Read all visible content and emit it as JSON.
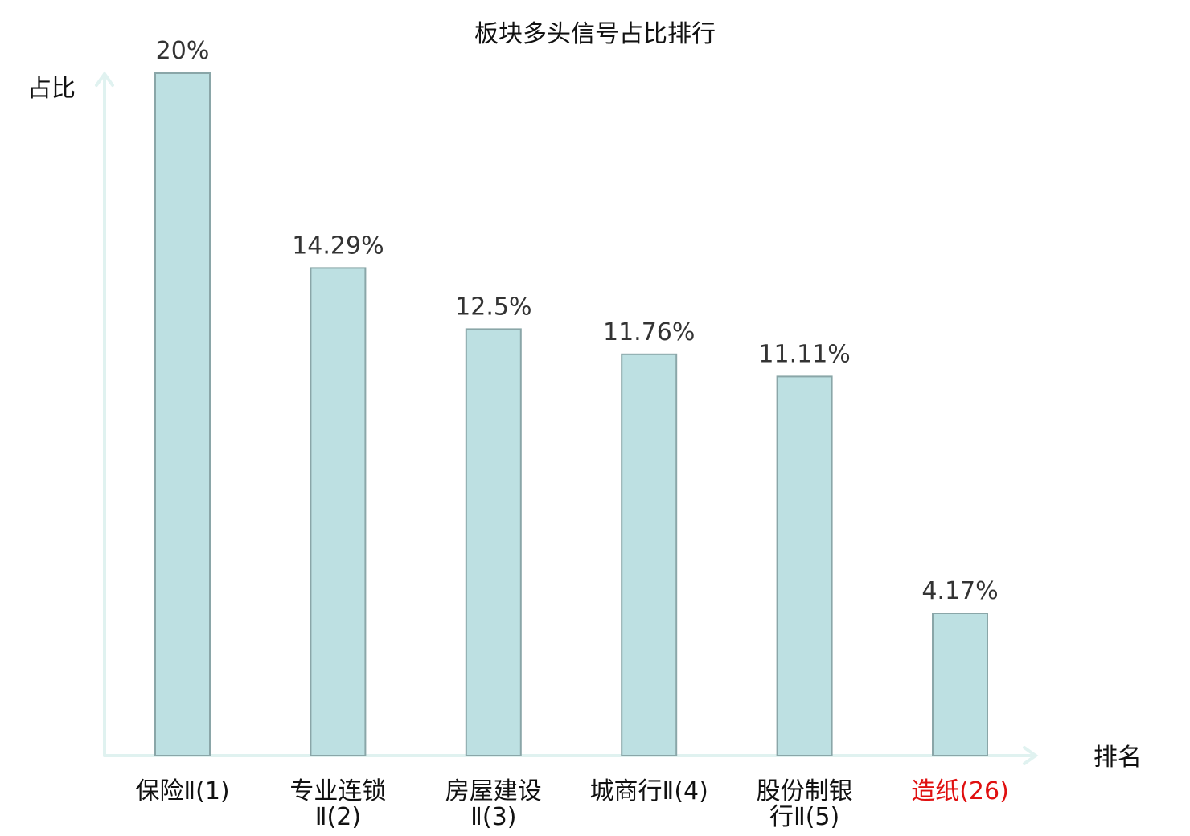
{
  "chart_data": {
    "type": "bar",
    "title": "板块多头信号占比排行",
    "ylabel": "占比",
    "xlabel": "排名",
    "categories": [
      [
        "保险Ⅱ(1)"
      ],
      [
        "专业连锁",
        "Ⅱ(2)"
      ],
      [
        "房屋建设",
        "Ⅱ(3)"
      ],
      [
        "城商行Ⅱ(4)"
      ],
      [
        "股份制银",
        "行Ⅱ(5)"
      ],
      [
        "造纸(26)"
      ]
    ],
    "values": [
      20,
      14.29,
      12.5,
      11.76,
      11.11,
      4.17
    ],
    "value_labels": [
      "20%",
      "14.29%",
      "12.5%",
      "11.76%",
      "11.11%",
      "4.17%"
    ],
    "highlight_index": 5,
    "ylim": [
      0,
      20
    ],
    "grid": false,
    "colors": {
      "bar_fill": "#bde0e2",
      "bar_stroke": "#8aa6a8",
      "axis": "#e0f2f0",
      "text": "#111111",
      "value_text": "#333333",
      "highlight_text": "#e01010"
    }
  }
}
